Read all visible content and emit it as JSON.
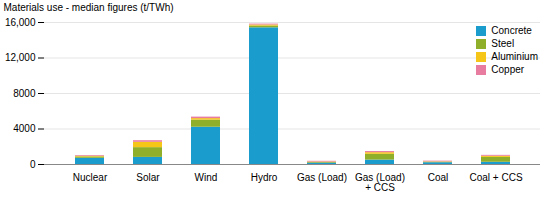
{
  "chart_data": {
    "type": "bar",
    "stacked": true,
    "categories": [
      "Nuclear",
      "Solar",
      "Wind",
      "Hydro",
      "Gas (Load)",
      "Gas (Load)\n+ CCS",
      "Coal",
      "Coal + CCS"
    ],
    "series": [
      {
        "name": "Concrete",
        "color": "#1a9dcd",
        "values": [
          700,
          800,
          4200,
          15400,
          150,
          500,
          200,
          250
        ]
      },
      {
        "name": "Steel",
        "color": "#8fae2a",
        "values": [
          150,
          1100,
          800,
          200,
          80,
          650,
          60,
          550
        ]
      },
      {
        "name": "Aluminium",
        "color": "#f5c518",
        "values": [
          80,
          600,
          170,
          120,
          50,
          180,
          40,
          130
        ]
      },
      {
        "name": "Copper",
        "color": "#e87ca0",
        "values": [
          80,
          180,
          170,
          100,
          80,
          130,
          80,
          100
        ]
      }
    ],
    "ylabel": "Materials use - median figures (t/TWh)",
    "ylim": [
      0,
      16000
    ],
    "yticks": [
      0,
      4000,
      8000,
      {
        "value": 12000,
        "label": "12,000"
      },
      {
        "value": 16000,
        "label": "16,000"
      }
    ],
    "grid": true,
    "legend": "upper right"
  }
}
